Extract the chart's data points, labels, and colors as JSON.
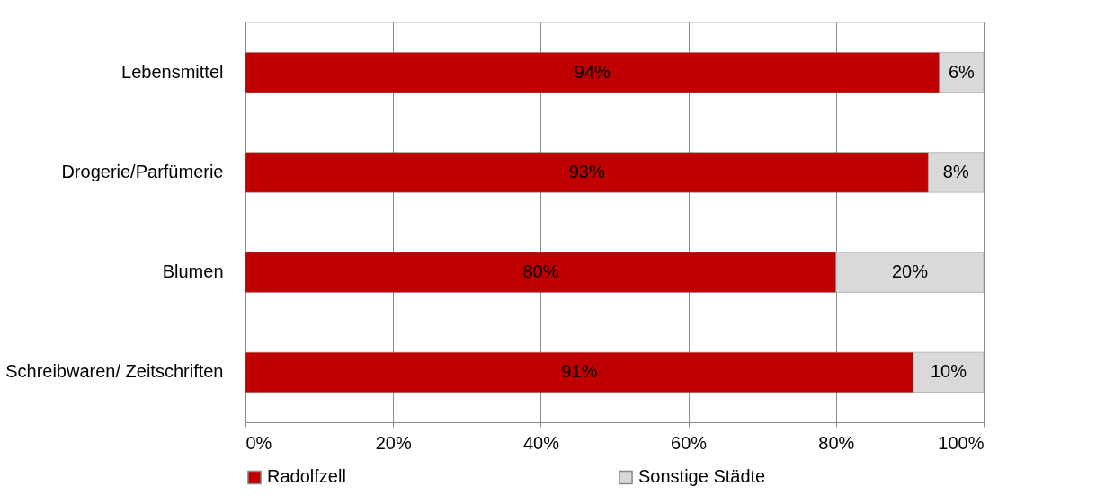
{
  "chart_data": {
    "type": "bar",
    "orientation": "horizontal",
    "stacked": true,
    "categories": [
      "Lebensmittel",
      "Drogerie/Parfümerie",
      "Blumen",
      "Schreibwaren/ Zeitschriften"
    ],
    "series": [
      {
        "name": "Radolfzell",
        "color": "#c00000",
        "values": [
          94,
          92.5,
          80,
          90.5
        ],
        "value_labels": [
          "94%",
          "93%",
          "80%",
          "91%"
        ]
      },
      {
        "name": "Sonstige Städte",
        "color": "#d9d9d9",
        "values": [
          6,
          7.5,
          20,
          9.5
        ],
        "value_labels": [
          "6%",
          "8%",
          "20%",
          "10%"
        ]
      }
    ],
    "xlim": [
      0,
      100
    ],
    "xticks": [
      {
        "value": 0,
        "label": "0%"
      },
      {
        "value": 20,
        "label": "20%"
      },
      {
        "value": 40,
        "label": "40%"
      },
      {
        "value": 60,
        "label": "60%"
      },
      {
        "value": 80,
        "label": "80%"
      },
      {
        "value": 100,
        "label": "100%"
      }
    ],
    "grid": "x",
    "legend": "bottom"
  }
}
